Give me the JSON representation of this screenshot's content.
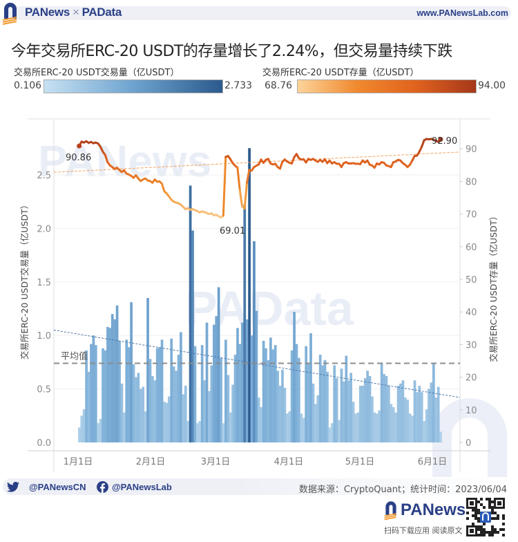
{
  "header": {
    "brand_left_a": "PA",
    "brand_left_b": "News",
    "separator": "×",
    "brand_right_a": "PA",
    "brand_right_b": "Data",
    "site": "www.PANewsLab.com"
  },
  "title": "今年交易所ERC-20 USDT的存量增长了2.24%，但交易量持续下跌",
  "legend": {
    "volume": {
      "label": "交易所ERC-20 USDT交易量（亿USDT）",
      "min": "0.106",
      "max": "2.733",
      "color_min": "#c6e1f2",
      "color_max": "#2b5a8c"
    },
    "reserve": {
      "label": "交易所ERC-20 USDT存量（亿USDT）",
      "min": "68.76",
      "max": "94.00",
      "color_min": "#fcd49a",
      "color_max": "#a5371a"
    }
  },
  "footer": {
    "twitter_icon": "twitter-icon",
    "twitter": "@PANewsCN",
    "facebook_icon": "facebook-icon",
    "facebook": "@PANewsLab",
    "source": "数据来源：CryptoQuant；统计时间：2023/06/04",
    "app_brand_a": "PA",
    "app_brand_b": "News",
    "app_sub": "扫码下载应用  阅读原文"
  },
  "chart_data": {
    "type": "bar+line",
    "title": "今年交易所ERC-20 USDT的存量增长了2.24%，但交易量持续下跌",
    "xlabel": "",
    "ylabel_left": "交易所ERC-20 USDT交易量（亿USDT）",
    "ylabel_right": "交易所ERC-20 USDT存量（亿USDT）",
    "x_ticks": [
      "1月1日",
      "2月1日",
      "3月1日",
      "4月1日",
      "5月1日",
      "6月1日"
    ],
    "y_left_ticks": [
      "0.0",
      "0.5",
      "1.0",
      "1.5",
      "2.0",
      "2.5"
    ],
    "y_right_ticks": [
      "0",
      "10",
      "20",
      "30",
      "40",
      "50",
      "60",
      "70",
      "80",
      "90"
    ],
    "ylim_left": [
      0,
      2.8
    ],
    "ylim_right": [
      0,
      100
    ],
    "grid": true,
    "average_label": "平均值",
    "average_volume": 0.74,
    "volume_trend": {
      "start": 1.05,
      "end": 0.42
    },
    "reserve_trend": {
      "start": 82.8,
      "end": 89.0
    },
    "annotations": [
      {
        "text": "90.86",
        "series": "reserve",
        "position": "start"
      },
      {
        "text": "69.01",
        "series": "reserve",
        "position": "min"
      },
      {
        "text": "92.90",
        "series": "reserve",
        "position": "end"
      }
    ],
    "series": [
      {
        "name": "交易所ERC-20 USDT交易量（亿USDT）",
        "kind": "bar",
        "axis": "left",
        "start_date": "2023-01-01",
        "values": [
          0.14,
          0.25,
          0.31,
          0.86,
          0.66,
          0.92,
          1.0,
          0.91,
          0.18,
          0.22,
          0.88,
          0.86,
          1.08,
          1.07,
          1.2,
          1.15,
          1.28,
          0.95,
          0.55,
          0.28,
          0.96,
          0.89,
          1.31,
          0.73,
          0.61,
          0.65,
          0.5,
          0.52,
          0.29,
          1.35,
          0.78,
          0.62,
          0.58,
          0.88,
          0.89,
          0.96,
          0.38,
          0.37,
          0.43,
          0.97,
          0.71,
          0.67,
          0.82,
          1.03,
          0.45,
          0.53,
          0.2,
          2.4,
          1.98,
          0.9,
          0.18,
          0.2,
          0.91,
          0.58,
          1.12,
          0.48,
          0.72,
          1.1,
          1.18,
          1.45,
          0.79,
          0.18,
          0.96,
          0.63,
          0.28,
          0.54,
          0.82,
          1.07,
          0.92,
          1.12,
          2.22,
          1.15,
          2.75,
          1.0,
          1.88,
          1.23,
          0.42,
          0.33,
          0.95,
          0.88,
          0.77,
          0.98,
          0.87,
          0.91,
          0.67,
          0.53,
          0.68,
          0.51,
          0.27,
          0.29,
          0.86,
          1.22,
          0.92,
          0.79,
          0.27,
          0.23,
          0.9,
          0.74,
          1.02,
          0.55,
          0.36,
          0.44,
          0.82,
          0.72,
          0.77,
          0.66,
          0.14,
          0.18,
          0.72,
          0.6,
          0.21,
          0.69,
          0.57,
          0.81,
          0.58,
          0.65,
          0.38,
          0.27,
          0.28,
          0.53,
          0.53,
          0.6,
          0.67,
          0.62,
          0.43,
          0.28,
          0.27,
          0.3,
          0.74,
          0.64,
          0.62,
          0.53,
          0.36,
          0.33,
          0.28,
          0.53,
          0.55,
          0.58,
          0.42,
          0.4,
          0.27,
          0.25,
          0.58,
          0.47,
          0.53,
          0.47,
          0.2,
          0.31,
          0.5,
          0.56,
          0.74,
          0.42,
          0.52,
          0.1
        ]
      },
      {
        "name": "交易所ERC-20 USDT存量（亿USDT）",
        "kind": "line",
        "axis": "right",
        "start_date": "2023-01-01",
        "values": [
          90.86,
          92.2,
          91.9,
          92.3,
          91.8,
          92.1,
          91.7,
          91.9,
          91.6,
          90.6,
          89.1,
          88.1,
          85.9,
          84.9,
          84.4,
          83.8,
          84.2,
          83.5,
          82.9,
          83.4,
          82.4,
          82.1,
          81.7,
          81.1,
          81.9,
          80.9,
          80.1,
          80.6,
          80.9,
          80.3,
          80.1,
          79.6,
          80.6,
          79.9,
          80.0,
          79.3,
          77.0,
          76.3,
          75.4,
          74.4,
          73.8,
          73.5,
          73.3,
          72.9,
          72.2,
          71.5,
          71.8,
          71.3,
          71.5,
          71.2,
          70.9,
          70.5,
          70.8,
          70.6,
          70.3,
          70.0,
          70.2,
          69.6,
          69.8,
          69.3,
          69.01,
          69.5,
          87.5,
          87.8,
          86.8,
          85.6,
          84.8,
          84.2,
          77.3,
          72.3,
          71.7,
          79.6,
          83.5,
          83.3,
          84.4,
          84.8,
          85.2,
          86.7,
          85.7,
          86.6,
          86.9,
          85.5,
          85.2,
          85.4,
          84.4,
          83.9,
          86.0,
          86.7,
          86.1,
          85.7,
          85.5,
          87.4,
          88.4,
          87.1,
          86.7,
          86.8,
          85.8,
          86.9,
          86.6,
          86.9,
          86.4,
          86.0,
          86.6,
          86.0,
          86.8,
          85.6,
          86.4,
          85.5,
          85.9,
          85.4,
          85.4,
          84.4,
          85.6,
          85.9,
          85.5,
          85.5,
          85.6,
          85.4,
          85.4,
          85.3,
          86.4,
          85.8,
          86.4,
          85.1,
          84.9,
          84.2,
          85.5,
          85.2,
          85.9,
          85.7,
          84.9,
          84.7,
          84.4,
          85.9,
          86.1,
          86.6,
          86.4,
          85.6,
          85.1,
          84.4,
          85.1,
          86.4,
          87.8,
          87.9,
          89.1,
          90.6,
          92.6,
          93.0,
          92.9,
          93.0,
          92.8,
          92.4,
          92.2,
          92.9
        ]
      }
    ]
  }
}
